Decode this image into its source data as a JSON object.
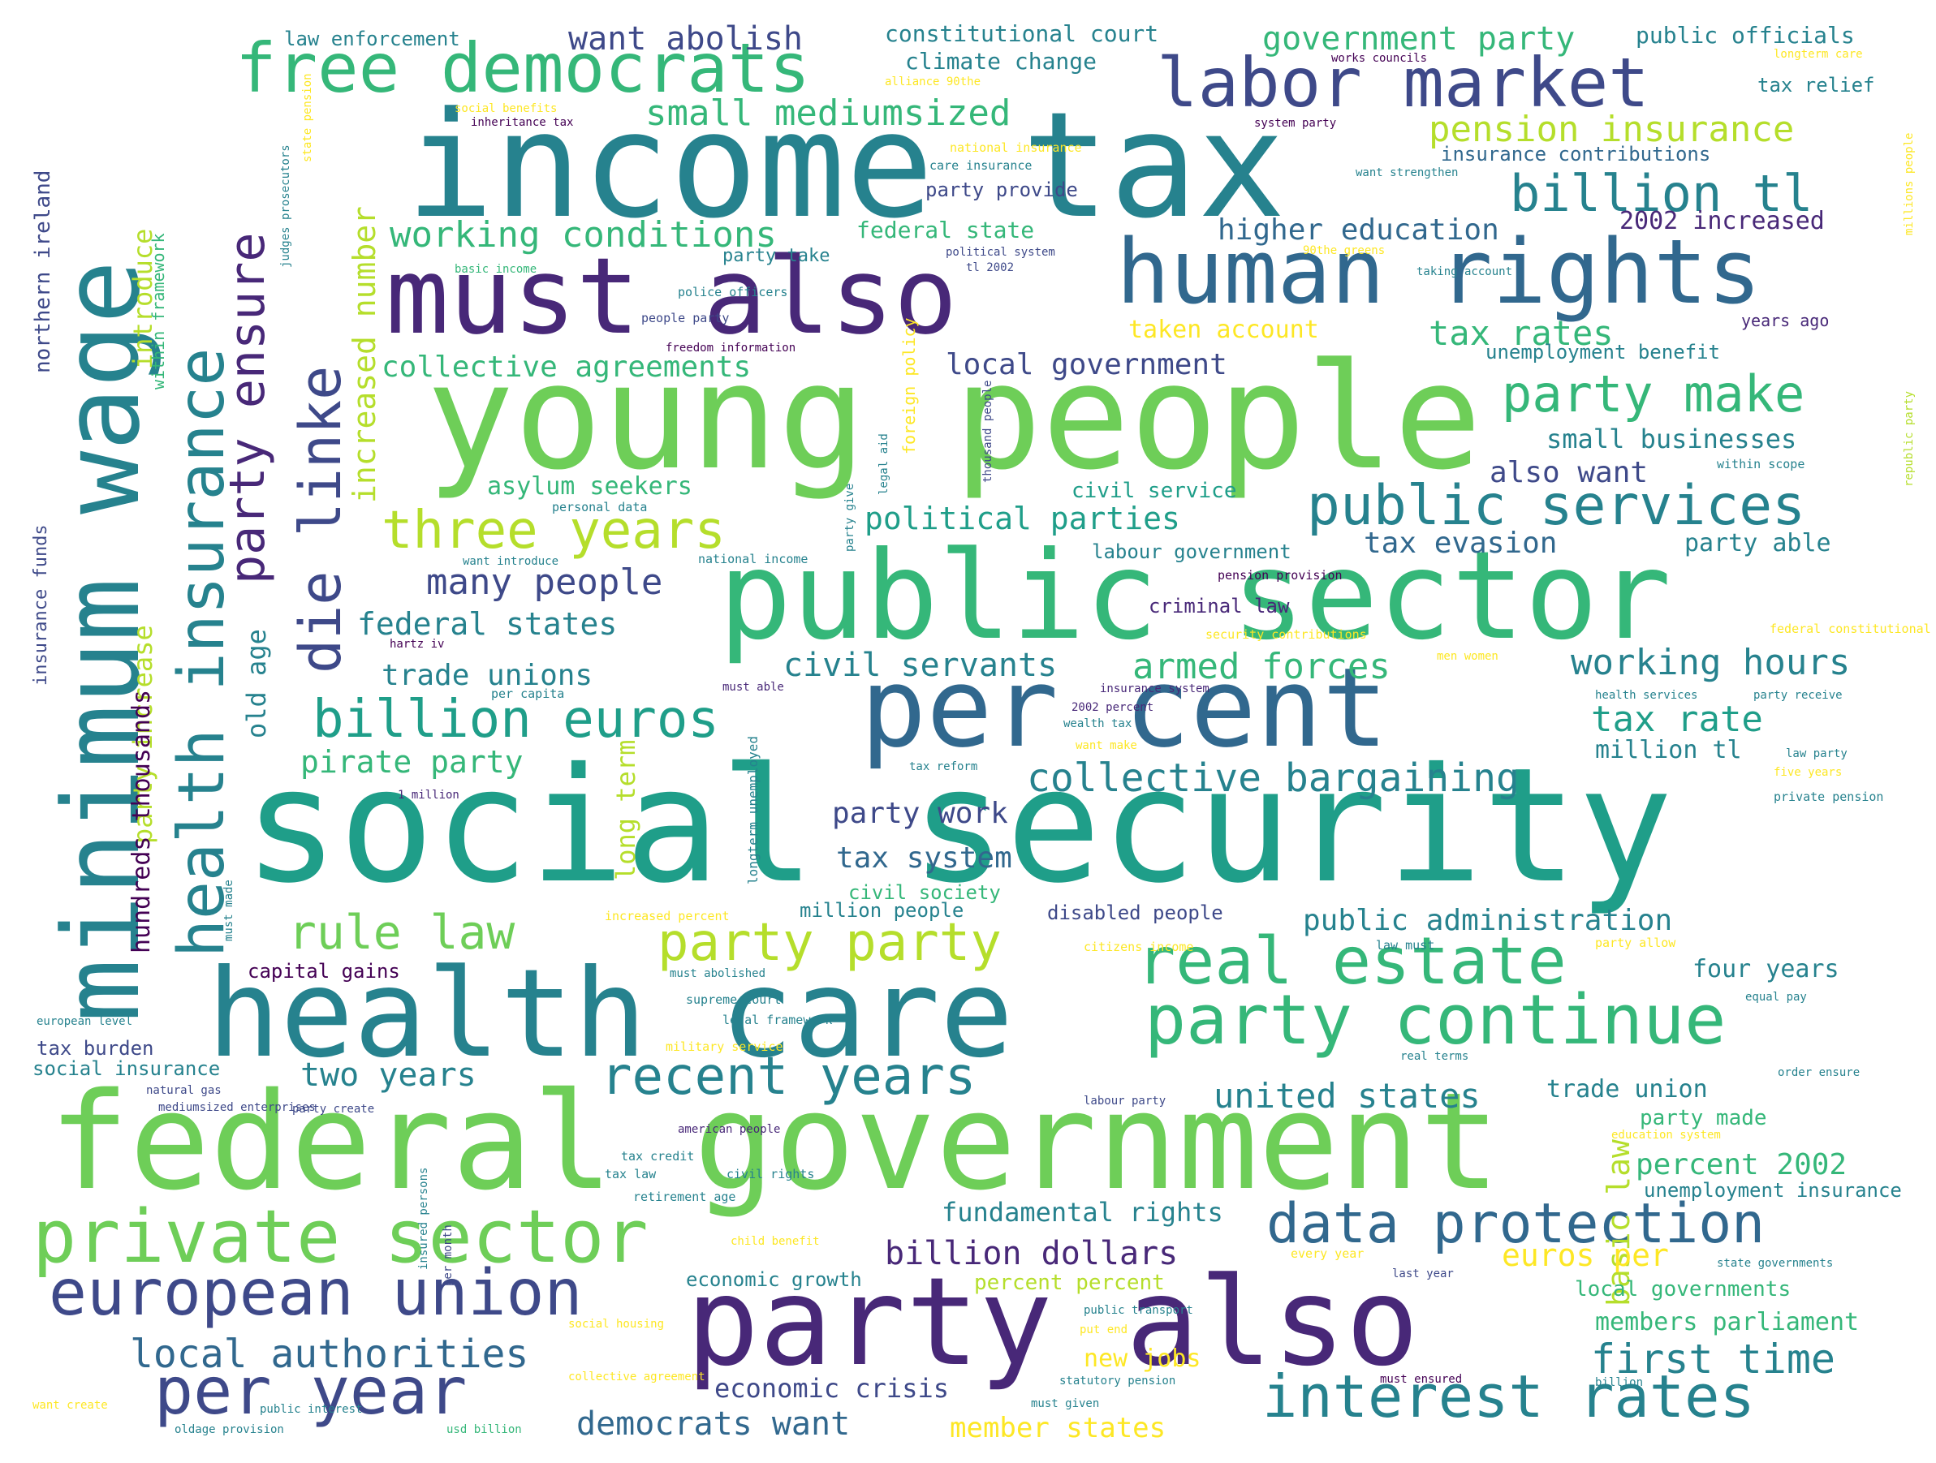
{
  "palette": [
    "#440154",
    "#482878",
    "#3e4989",
    "#31688e",
    "#26828e",
    "#1f9e89",
    "#35b779",
    "#6ece58",
    "#b5de2b",
    "#fde725"
  ],
  "words": [
    {
      "text": "social security",
      "color": "#1f9e89"
    },
    {
      "text": "income tax",
      "color": "#26828e"
    },
    {
      "text": "young people",
      "color": "#6ece58"
    },
    {
      "text": "public sector",
      "color": "#35b779"
    },
    {
      "text": "federal government",
      "color": "#6ece58"
    },
    {
      "text": "health care",
      "color": "#26828e"
    },
    {
      "text": "party also",
      "color": "#482878"
    },
    {
      "text": "per cent",
      "color": "#31688e"
    },
    {
      "text": "must also",
      "color": "#482878"
    },
    {
      "text": "human rights",
      "color": "#31688e"
    },
    {
      "text": "minimum wage",
      "color": "#26828e"
    },
    {
      "text": "labor market",
      "color": "#3e4989"
    },
    {
      "text": "free democrats",
      "color": "#35b779"
    },
    {
      "text": "private sector",
      "color": "#6ece58"
    },
    {
      "text": "party continue",
      "color": "#35b779"
    },
    {
      "text": "real estate",
      "color": "#35b779"
    },
    {
      "text": "interest rates",
      "color": "#26828e"
    },
    {
      "text": "health insurance",
      "color": "#26828e"
    },
    {
      "text": "european union",
      "color": "#3e4989"
    },
    {
      "text": "public services",
      "color": "#26828e"
    },
    {
      "text": "per year",
      "color": "#3e4989"
    },
    {
      "text": "data protection",
      "color": "#31688e"
    },
    {
      "text": "die linke",
      "color": "#3e4989"
    },
    {
      "text": "billion euros",
      "color": "#1f9e89"
    },
    {
      "text": "recent years",
      "color": "#26828e"
    },
    {
      "text": "three years",
      "color": "#b5de2b"
    },
    {
      "text": "party party",
      "color": "#b5de2b"
    },
    {
      "text": "billion tl",
      "color": "#26828e"
    },
    {
      "text": "party make",
      "color": "#35b779"
    },
    {
      "text": "rule law",
      "color": "#6ece58"
    },
    {
      "text": "party ensure",
      "color": "#482878"
    },
    {
      "text": "collective bargaining",
      "color": "#26828e"
    },
    {
      "text": "local authorities",
      "color": "#31688e"
    },
    {
      "text": "first time",
      "color": "#26828e"
    },
    {
      "text": "united states",
      "color": "#26828e"
    },
    {
      "text": "pension insurance",
      "color": "#b5de2b"
    },
    {
      "text": "small mediumsized",
      "color": "#35b779"
    },
    {
      "text": "working conditions",
      "color": "#35b779"
    },
    {
      "text": "government party",
      "color": "#35b779"
    },
    {
      "text": "want abolish",
      "color": "#3e4989"
    },
    {
      "text": "two years",
      "color": "#26828e"
    },
    {
      "text": "many people",
      "color": "#3e4989"
    },
    {
      "text": "tax rates",
      "color": "#35b779"
    },
    {
      "text": "tax rate",
      "color": "#1f9e89"
    },
    {
      "text": "working hours",
      "color": "#26828e"
    },
    {
      "text": "armed forces",
      "color": "#35b779"
    },
    {
      "text": "civil servants",
      "color": "#26828e"
    },
    {
      "text": "democrats want",
      "color": "#31688e"
    },
    {
      "text": "billion dollars",
      "color": "#482878"
    },
    {
      "text": "collective agreements",
      "color": "#35b779"
    },
    {
      "text": "local government",
      "color": "#3e4989"
    },
    {
      "text": "higher education",
      "color": "#31688e"
    },
    {
      "text": "pirate party",
      "color": "#35b779"
    },
    {
      "text": "political parties",
      "color": "#1f9e89"
    },
    {
      "text": "federal states",
      "color": "#26828e"
    },
    {
      "text": "trade unions",
      "color": "#26828e"
    },
    {
      "text": "tax evasion",
      "color": "#31688e"
    },
    {
      "text": "also want",
      "color": "#3e4989"
    },
    {
      "text": "small businesses",
      "color": "#26828e"
    },
    {
      "text": "public administration",
      "color": "#26828e"
    },
    {
      "text": "party work",
      "color": "#3e4989"
    },
    {
      "text": "tax system",
      "color": "#31688e"
    },
    {
      "text": "percent 2002",
      "color": "#35b779"
    },
    {
      "text": "members parliament",
      "color": "#35b779"
    },
    {
      "text": "four years",
      "color": "#26828e"
    },
    {
      "text": "member states",
      "color": "#fde725"
    },
    {
      "text": "euros per",
      "color": "#fde725"
    },
    {
      "text": "basic law",
      "color": "#b5de2b"
    },
    {
      "text": "fundamental rights",
      "color": "#26828e"
    },
    {
      "text": "economic crisis",
      "color": "#3e4989"
    },
    {
      "text": "new jobs",
      "color": "#fde725"
    },
    {
      "text": "increased number",
      "color": "#b5de2b"
    },
    {
      "text": "introduce",
      "color": "#b5de2b"
    },
    {
      "text": "old age",
      "color": "#26828e"
    },
    {
      "text": "long term",
      "color": "#b5de2b"
    },
    {
      "text": "party increase",
      "color": "#b5de2b"
    },
    {
      "text": "2002 increased",
      "color": "#482878"
    },
    {
      "text": "million tl",
      "color": "#26828e"
    },
    {
      "text": "party able",
      "color": "#26828e"
    },
    {
      "text": "trade union",
      "color": "#26828e"
    },
    {
      "text": "party made",
      "color": "#35b779"
    },
    {
      "text": "unemployment benefit",
      "color": "#26828e"
    },
    {
      "text": "federal state",
      "color": "#35b779"
    },
    {
      "text": "taken account",
      "color": "#fde725"
    },
    {
      "text": "local governments",
      "color": "#35b779"
    },
    {
      "text": "party provide",
      "color": "#3e4989"
    },
    {
      "text": "insurance contributions",
      "color": "#31688e"
    },
    {
      "text": "tax relief",
      "color": "#26828e"
    },
    {
      "text": "climate change",
      "color": "#26828e"
    },
    {
      "text": "constitutional court",
      "color": "#26828e"
    },
    {
      "text": "public officials",
      "color": "#26828e"
    },
    {
      "text": "law enforcement",
      "color": "#26828e"
    },
    {
      "text": "northern ireland",
      "color": "#3e4989"
    },
    {
      "text": "party take",
      "color": "#26828e"
    },
    {
      "text": "asylum seekers",
      "color": "#35b779"
    },
    {
      "text": "civil service",
      "color": "#1f9e89"
    },
    {
      "text": "labour government",
      "color": "#26828e"
    },
    {
      "text": "criminal law",
      "color": "#482878"
    },
    {
      "text": "capital gains",
      "color": "#440154"
    },
    {
      "text": "million people",
      "color": "#26828e"
    },
    {
      "text": "disabled people",
      "color": "#3e4989"
    },
    {
      "text": "civil society",
      "color": "#35b779"
    },
    {
      "text": "tax burden",
      "color": "#3e4989"
    },
    {
      "text": "social insurance",
      "color": "#26828e"
    },
    {
      "text": "years ago",
      "color": "#482878"
    },
    {
      "text": "percent percent",
      "color": "#b5de2b"
    },
    {
      "text": "economic growth",
      "color": "#26828e"
    },
    {
      "text": "party increase",
      "color": "#b5de2b"
    },
    {
      "text": "hundreds thousands",
      "color": "#440154"
    },
    {
      "text": "works councils",
      "color": "#440154"
    },
    {
      "text": "longterm care",
      "color": "#fde725"
    },
    {
      "text": "alliance 90the",
      "color": "#fde725"
    },
    {
      "text": "social benefits",
      "color": "#fde725"
    },
    {
      "text": "inheritance tax",
      "color": "#440154"
    },
    {
      "text": "national insurance",
      "color": "#fde725"
    },
    {
      "text": "care insurance",
      "color": "#26828e"
    },
    {
      "text": "system party",
      "color": "#440154"
    },
    {
      "text": "want strengthen",
      "color": "#26828e"
    },
    {
      "text": "political system",
      "color": "#3e4989"
    },
    {
      "text": "tl 2002",
      "color": "#3e4989"
    },
    {
      "text": "90the greens",
      "color": "#fde725"
    },
    {
      "text": "basic income",
      "color": "#35b779"
    },
    {
      "text": "taking account",
      "color": "#26828e"
    },
    {
      "text": "police officers",
      "color": "#26828e"
    },
    {
      "text": "people party",
      "color": "#3e4989"
    },
    {
      "text": "freedom information",
      "color": "#440154"
    },
    {
      "text": "personal data",
      "color": "#26828e"
    },
    {
      "text": "want introduce",
      "color": "#26828e"
    },
    {
      "text": "national income",
      "color": "#26828e"
    },
    {
      "text": "pension provision",
      "color": "#440154"
    },
    {
      "text": "within scope",
      "color": "#26828e"
    },
    {
      "text": "security contributions",
      "color": "#fde725"
    },
    {
      "text": "hartz iv",
      "color": "#440154"
    },
    {
      "text": "men women",
      "color": "#fde725"
    },
    {
      "text": "federal constitutional",
      "color": "#fde725"
    },
    {
      "text": "per capita",
      "color": "#26828e"
    },
    {
      "text": "must able",
      "color": "#482878"
    },
    {
      "text": "insurance system",
      "color": "#482878"
    },
    {
      "text": "2002 percent",
      "color": "#482878"
    },
    {
      "text": "wealth tax",
      "color": "#26828e"
    },
    {
      "text": "health services",
      "color": "#26828e"
    },
    {
      "text": "party receive",
      "color": "#26828e"
    },
    {
      "text": "want make",
      "color": "#fde725"
    },
    {
      "text": "law party",
      "color": "#26828e"
    },
    {
      "text": "five years",
      "color": "#fde725"
    },
    {
      "text": "tax reform",
      "color": "#26828e"
    },
    {
      "text": "1 million",
      "color": "#482878"
    },
    {
      "text": "private pension",
      "color": "#26828e"
    },
    {
      "text": "increased percent",
      "color": "#fde725"
    },
    {
      "text": "citizens income",
      "color": "#fde725"
    },
    {
      "text": "law must",
      "color": "#26828e"
    },
    {
      "text": "party allow",
      "color": "#fde725"
    },
    {
      "text": "must abolished",
      "color": "#26828e"
    },
    {
      "text": "supreme court",
      "color": "#26828e"
    },
    {
      "text": "legal framework",
      "color": "#26828e"
    },
    {
      "text": "military service",
      "color": "#fde725"
    },
    {
      "text": "european level",
      "color": "#26828e"
    },
    {
      "text": "equal pay",
      "color": "#26828e"
    },
    {
      "text": "real terms",
      "color": "#26828e"
    },
    {
      "text": "order ensure",
      "color": "#26828e"
    },
    {
      "text": "natural gas",
      "color": "#3e4989"
    },
    {
      "text": "mediumsized enterprises",
      "color": "#3e4989"
    },
    {
      "text": "party create",
      "color": "#3e4989"
    },
    {
      "text": "labour party",
      "color": "#3e4989"
    },
    {
      "text": "american people",
      "color": "#482878"
    },
    {
      "text": "education system",
      "color": "#fde725"
    },
    {
      "text": "tax credit",
      "color": "#26828e"
    },
    {
      "text": "tax law",
      "color": "#26828e"
    },
    {
      "text": "civil rights",
      "color": "#26828e"
    },
    {
      "text": "retirement age",
      "color": "#26828e"
    },
    {
      "text": "child benefit",
      "color": "#fde725"
    },
    {
      "text": "every year",
      "color": "#fde725"
    },
    {
      "text": "last year",
      "color": "#3e4989"
    },
    {
      "text": "state governments",
      "color": "#26828e"
    },
    {
      "text": "public transport",
      "color": "#26828e"
    },
    {
      "text": "put end",
      "color": "#fde725"
    },
    {
      "text": "social housing",
      "color": "#fde725"
    },
    {
      "text": "statutory pension",
      "color": "#26828e"
    },
    {
      "text": "must ensured",
      "color": "#440154"
    },
    {
      "text": "billion",
      "color": "#26828e"
    },
    {
      "text": "collective agreement",
      "color": "#fde725"
    },
    {
      "text": "must given",
      "color": "#26828e"
    },
    {
      "text": "want create",
      "color": "#fde725"
    },
    {
      "text": "public interest",
      "color": "#26828e"
    },
    {
      "text": "oldage provision",
      "color": "#26828e"
    },
    {
      "text": "usd billion",
      "color": "#35b779"
    },
    {
      "text": "within framework",
      "color": "#35b779"
    },
    {
      "text": "judges prosecutors",
      "color": "#26828e"
    },
    {
      "text": "state pension",
      "color": "#fde725"
    },
    {
      "text": "legal aid",
      "color": "#26828e"
    },
    {
      "text": "foreign policy",
      "color": "#fde725"
    },
    {
      "text": "unemployment insurance",
      "color": "#26828e"
    },
    {
      "text": "party give",
      "color": "#26828e"
    },
    {
      "text": "thousand people",
      "color": "#3e4989"
    },
    {
      "text": "longterm unemployed",
      "color": "#26828e"
    },
    {
      "text": "must made",
      "color": "#26828e"
    },
    {
      "text": "insurance funds",
      "color": "#3e4989"
    },
    {
      "text": "per month",
      "color": "#3e4989"
    },
    {
      "text": "insured persons",
      "color": "#26828e"
    },
    {
      "text": "millions people",
      "color": "#fde725"
    },
    {
      "text": "republic party",
      "color": "#b5de2b"
    }
  ]
}
